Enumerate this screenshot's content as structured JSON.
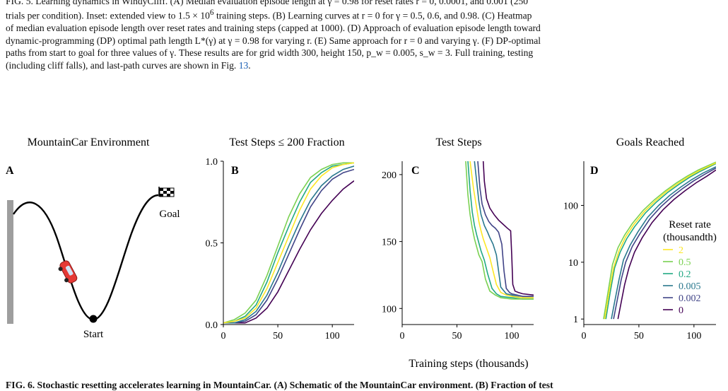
{
  "caption": {
    "line1": "FIG. 5. Learning dynamics in WindyCliff. (A) Median evaluation episode length at γ = 0.98 for reset rates r = 0, 0.0001, and 0.001 (250",
    "line2_pre": "trials per condition). Inset: extended view to 1.5 × 10",
    "line2_sup": "6",
    "line2_post": " training steps. (B) Learning curves at r = 0 for γ = 0.5, 0.6, and 0.98. (C) Heatmap",
    "line3": "of median evaluation episode length over reset rates and training steps (capped at 1000). (D) Approach of evaluation episode length toward",
    "line4": "dynamic-programming (DP) optimal path length L*(γ) at γ = 0.98 for varying r. (E) Same approach for r = 0 and varying γ. (F) DP-optimal",
    "line5": "paths from start to goal for three values of γ. These results are for grid width 300, height 150, p_w = 0.005, s_w = 3. Full training, testing",
    "line6_pre": "(including cliff falls), and last-path curves are shown in Fig. ",
    "line6_ref": "13",
    "line6_post": ".",
    "bottom": "FIG. 6. Stochastic resetting accelerates learning in MountainCar. (A) Schematic of the MountainCar environment. (B) Fraction of test"
  },
  "panel_a": {
    "title": "MountainCar Environment",
    "letter": "A",
    "goal_label": "Goal",
    "start_label": "Start"
  },
  "panel_b": {
    "title": "Test Steps ≤ 200 Fraction",
    "letter": "B"
  },
  "panel_c": {
    "title": "Test Steps",
    "letter": "C"
  },
  "panel_d": {
    "title": "Goals Reached",
    "letter": "D",
    "legend_title_1": "Reset rate",
    "legend_title_2": "(thousandth)"
  },
  "shared_xlabel": "Training steps (thousands)",
  "colors": {
    "r2": "#fde725",
    "r0_5": "#7ad151",
    "r0_2": "#22a884",
    "r0_005": "#2a788e",
    "r0_002": "#414487",
    "r0": "#440154",
    "wall": "#9e9e9e",
    "car": "#e53935"
  },
  "chart_data": [
    {
      "type": "line",
      "panel": "B",
      "title": "Test Steps ≤ 200 Fraction",
      "xlabel": "Training steps (thousands)",
      "ylabel": "",
      "xlim": [
        0,
        120
      ],
      "ylim": [
        0,
        1.0
      ],
      "xticks": [
        0,
        50,
        100
      ],
      "yticks": [
        0.0,
        0.5,
        1.0
      ],
      "ytick_labels": [
        "0.0",
        "0.5",
        "1.0"
      ],
      "x": [
        0,
        10,
        20,
        30,
        40,
        50,
        60,
        70,
        80,
        90,
        100,
        110,
        120
      ],
      "series": [
        {
          "name": "2",
          "color_key": "r2",
          "values": [
            0.01,
            0.02,
            0.04,
            0.1,
            0.22,
            0.38,
            0.54,
            0.7,
            0.83,
            0.91,
            0.96,
            0.98,
            0.99
          ]
        },
        {
          "name": "0.5",
          "color_key": "r0_5",
          "values": [
            0.01,
            0.03,
            0.07,
            0.15,
            0.3,
            0.48,
            0.66,
            0.8,
            0.9,
            0.95,
            0.98,
            0.99,
            0.99
          ]
        },
        {
          "name": "0.2",
          "color_key": "r0_2",
          "values": [
            0.01,
            0.02,
            0.05,
            0.12,
            0.26,
            0.44,
            0.6,
            0.75,
            0.87,
            0.93,
            0.97,
            0.98,
            0.99
          ]
        },
        {
          "name": "0.005",
          "color_key": "r0_005",
          "values": [
            0.01,
            0.01,
            0.03,
            0.08,
            0.18,
            0.32,
            0.48,
            0.63,
            0.76,
            0.85,
            0.91,
            0.95,
            0.97
          ]
        },
        {
          "name": "0.002",
          "color_key": "r0_002",
          "values": [
            0.01,
            0.01,
            0.02,
            0.06,
            0.15,
            0.28,
            0.43,
            0.58,
            0.72,
            0.82,
            0.89,
            0.93,
            0.95
          ]
        },
        {
          "name": "0",
          "color_key": "r0",
          "values": [
            0.01,
            0.01,
            0.01,
            0.04,
            0.1,
            0.2,
            0.33,
            0.46,
            0.58,
            0.68,
            0.76,
            0.83,
            0.88
          ]
        }
      ]
    },
    {
      "type": "line",
      "panel": "C",
      "title": "Test Steps",
      "xlim": [
        0,
        120
      ],
      "ylim": [
        88,
        210
      ],
      "xticks": [
        0,
        50,
        100
      ],
      "yticks": [
        100,
        150,
        200
      ],
      "series": [
        {
          "name": "2",
          "color_key": "r2",
          "x": [
            62,
            65,
            68,
            70,
            72,
            74,
            77,
            80,
            83,
            86,
            90,
            95,
            100,
            110,
            120
          ],
          "values": [
            210,
            190,
            175,
            165,
            158,
            152,
            145,
            138,
            128,
            118,
            112,
            110,
            109,
            108,
            108
          ]
        },
        {
          "name": "0.5",
          "color_key": "r0_5",
          "x": [
            58,
            60,
            62,
            64,
            66,
            68,
            70,
            73,
            76,
            80,
            85,
            90,
            100,
            110,
            120
          ],
          "values": [
            210,
            185,
            170,
            160,
            152,
            146,
            140,
            135,
            122,
            113,
            110,
            108,
            107,
            107,
            107
          ]
        },
        {
          "name": "0.2",
          "color_key": "r0_2",
          "x": [
            60,
            62,
            64,
            66,
            68,
            70,
            72,
            75,
            78,
            82,
            86,
            90,
            100,
            110,
            120
          ],
          "values": [
            210,
            188,
            172,
            162,
            155,
            149,
            143,
            136,
            126,
            115,
            111,
            109,
            108,
            107,
            107
          ]
        },
        {
          "name": "0.005",
          "color_key": "r0_005",
          "x": [
            66,
            68,
            70,
            72,
            75,
            78,
            80,
            83,
            86,
            88,
            90,
            95,
            100,
            110,
            120
          ],
          "values": [
            210,
            195,
            180,
            170,
            162,
            157,
            153,
            148,
            140,
            128,
            116,
            111,
            110,
            108,
            108
          ]
        },
        {
          "name": "0.002",
          "color_key": "r0_002",
          "x": [
            69,
            71,
            73,
            76,
            79,
            82,
            85,
            88,
            91,
            93,
            95,
            98,
            100,
            110,
            120
          ],
          "values": [
            210,
            190,
            178,
            170,
            165,
            162,
            160,
            157,
            148,
            128,
            115,
            112,
            111,
            109,
            109
          ]
        },
        {
          "name": "0",
          "color_key": "r0",
          "x": [
            74,
            75,
            77,
            80,
            84,
            88,
            92,
            96,
            99,
            100,
            101,
            103,
            106,
            110,
            120
          ],
          "values": [
            210,
            195,
            182,
            175,
            170,
            166,
            163,
            160,
            158,
            140,
            118,
            113,
            112,
            111,
            110
          ]
        }
      ]
    },
    {
      "type": "line",
      "panel": "D",
      "title": "Goals Reached",
      "yscale": "log",
      "xlim": [
        0,
        120
      ],
      "ylim": [
        0.8,
        600
      ],
      "xticks": [
        0,
        50,
        100
      ],
      "yticks": [
        1,
        10,
        100
      ],
      "legend": {
        "title": "Reset rate (thousandth)",
        "placement": "center-right"
      },
      "series": [
        {
          "name": "2",
          "color_key": "r2",
          "x": [
            19,
            23,
            27,
            32,
            38,
            45,
            55,
            65,
            75,
            85,
            95,
            105,
            120
          ],
          "values": [
            1,
            3,
            8,
            16,
            28,
            45,
            78,
            120,
            175,
            240,
            320,
            410,
            560
          ]
        },
        {
          "name": "0.5",
          "color_key": "r0_5",
          "x": [
            18,
            22,
            26,
            31,
            37,
            44,
            54,
            64,
            74,
            84,
            94,
            104,
            120
          ],
          "values": [
            1,
            3,
            9,
            18,
            30,
            48,
            82,
            125,
            180,
            248,
            330,
            420,
            580
          ]
        },
        {
          "name": "0.2",
          "color_key": "r0_2",
          "x": [
            20,
            24,
            28,
            33,
            39,
            46,
            56,
            66,
            76,
            86,
            96,
            106,
            120
          ],
          "values": [
            1,
            3,
            8,
            15,
            26,
            42,
            74,
            115,
            168,
            232,
            312,
            400,
            545
          ]
        },
        {
          "name": "0.005",
          "color_key": "r0_005",
          "x": [
            25,
            28,
            32,
            36,
            42,
            49,
            58,
            68,
            78,
            88,
            98,
            108,
            120
          ],
          "values": [
            1,
            2,
            5,
            11,
            20,
            34,
            62,
            100,
            150,
            210,
            285,
            370,
            480
          ]
        },
        {
          "name": "0.002",
          "color_key": "r0_002",
          "x": [
            27,
            30,
            34,
            38,
            44,
            51,
            60,
            70,
            80,
            90,
            100,
            110,
            120
          ],
          "values": [
            1,
            2,
            5,
            10,
            19,
            32,
            58,
            95,
            142,
            200,
            272,
            355,
            455
          ]
        },
        {
          "name": "0",
          "color_key": "r0",
          "x": [
            31,
            34,
            37,
            41,
            46,
            53,
            62,
            72,
            82,
            92,
            102,
            112,
            120
          ],
          "values": [
            1,
            2,
            4,
            8,
            15,
            27,
            50,
            84,
            128,
            182,
            250,
            330,
            420
          ]
        }
      ]
    }
  ]
}
